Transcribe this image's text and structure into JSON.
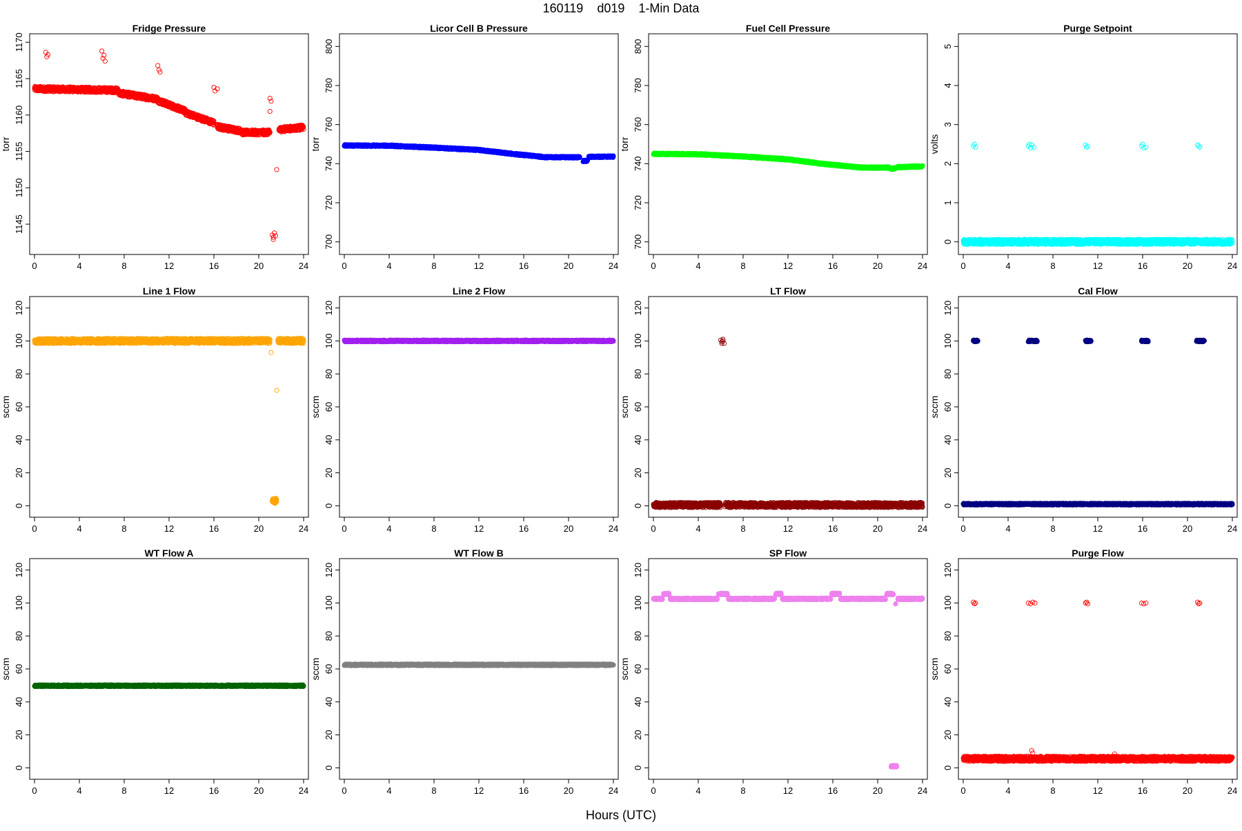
{
  "figure": {
    "title": "160119    d019    1-Min Data",
    "xlabel": "Hours (UTC)"
  },
  "chart_data": [
    {
      "type": "scatter",
      "title": "Fridge Pressure",
      "ylabel": "torr",
      "xlim": [
        0,
        24
      ],
      "ylim": [
        1141.5,
        1170.5
      ],
      "xticks": [
        0,
        4,
        8,
        12,
        16,
        20,
        24
      ],
      "yticks": [
        1145,
        1150,
        1155,
        1160,
        1165,
        1170
      ],
      "color": "#ff0000",
      "marker": "open-circle",
      "segments": [
        {
          "x": [
            0,
            7.5
          ],
          "y": [
            1163.6,
            1163.4
          ]
        },
        {
          "x": [
            7.5,
            11
          ],
          "y": [
            1163.0,
            1162.2
          ]
        },
        {
          "x": [
            11,
            13.5
          ],
          "y": [
            1162.0,
            1160.5
          ]
        },
        {
          "x": [
            13.5,
            16
          ],
          "y": [
            1160.3,
            1158.9
          ]
        },
        {
          "x": [
            16.3,
            18.5
          ],
          "y": [
            1158.4,
            1157.8
          ]
        },
        {
          "x": [
            18.5,
            21
          ],
          "y": [
            1157.6,
            1157.6
          ]
        },
        {
          "x": [
            21.8,
            24
          ],
          "y": [
            1158.0,
            1158.3
          ]
        }
      ],
      "points": [
        {
          "x": [
            1.0,
            1.1,
            1.2
          ],
          "y": [
            1168.6,
            1168.0,
            1168.3
          ]
        },
        {
          "x": [
            6.0,
            6.1,
            6.3,
            6.2
          ],
          "y": [
            1168.8,
            1167.8,
            1167.4,
            1168.2
          ]
        },
        {
          "x": [
            11.0,
            11.1,
            11.2
          ],
          "y": [
            1166.8,
            1166.2,
            1165.9
          ]
        },
        {
          "x": [
            16.0,
            16.1,
            16.3
          ],
          "y": [
            1163.8,
            1163.3,
            1163.6
          ]
        },
        {
          "x": [
            21.0,
            21.1,
            21.0,
            21.6
          ],
          "y": [
            1162.3,
            1161.9,
            1160.5,
            1152.5
          ]
        },
        {
          "x": [
            21.2,
            21.3,
            21.4,
            21.5,
            21.3
          ],
          "y": [
            1143.5,
            1143.2,
            1143.8,
            1143.4,
            1142.9
          ]
        }
      ]
    },
    {
      "type": "scatter",
      "title": "Licor Cell B Pressure",
      "ylabel": "torr",
      "xlim": [
        0,
        24
      ],
      "ylim": [
        696,
        804
      ],
      "xticks": [
        0,
        4,
        8,
        12,
        16,
        20,
        24
      ],
      "yticks": [
        700,
        720,
        740,
        760,
        780,
        800
      ],
      "color": "#0000ff",
      "marker": "filled-circle",
      "segments": [
        {
          "x": [
            0,
            4
          ],
          "y": [
            749.3,
            749.2
          ]
        },
        {
          "x": [
            4,
            8
          ],
          "y": [
            749.2,
            748.2
          ]
        },
        {
          "x": [
            8,
            12
          ],
          "y": [
            748.2,
            747.0
          ]
        },
        {
          "x": [
            12,
            15
          ],
          "y": [
            747.0,
            745.0
          ]
        },
        {
          "x": [
            15,
            18
          ],
          "y": [
            745.0,
            743.3
          ]
        },
        {
          "x": [
            18,
            21
          ],
          "y": [
            743.3,
            743.3
          ]
        },
        {
          "x": [
            21.3,
            21.7
          ],
          "y": [
            741.3,
            741.5
          ]
        },
        {
          "x": [
            21.8,
            24
          ],
          "y": [
            743.5,
            743.6
          ]
        }
      ],
      "points": []
    },
    {
      "type": "scatter",
      "title": "Fuel Cell Pressure",
      "ylabel": "torr",
      "xlim": [
        0,
        24
      ],
      "ylim": [
        696,
        804
      ],
      "xticks": [
        0,
        4,
        8,
        12,
        16,
        20,
        24
      ],
      "yticks": [
        700,
        720,
        740,
        760,
        780,
        800
      ],
      "color": "#00ff00",
      "marker": "filled-circle",
      "segments": [
        {
          "x": [
            0,
            4
          ],
          "y": [
            745.0,
            744.8
          ]
        },
        {
          "x": [
            4,
            8
          ],
          "y": [
            744.8,
            743.7
          ]
        },
        {
          "x": [
            8,
            12
          ],
          "y": [
            743.7,
            742.2
          ]
        },
        {
          "x": [
            12,
            15
          ],
          "y": [
            742.2,
            740.0
          ]
        },
        {
          "x": [
            15,
            18.5
          ],
          "y": [
            740.0,
            738.0
          ]
        },
        {
          "x": [
            18.5,
            21
          ],
          "y": [
            738.0,
            738.0
          ]
        },
        {
          "x": [
            21.2,
            21.6
          ],
          "y": [
            737.4,
            737.6
          ]
        },
        {
          "x": [
            21.8,
            24
          ],
          "y": [
            738.2,
            738.6
          ]
        }
      ],
      "points": []
    },
    {
      "type": "scatter",
      "title": "Purge Setpoint",
      "ylabel": "volts",
      "xlim": [
        0,
        24
      ],
      "ylim": [
        -0.2,
        5.2
      ],
      "xticks": [
        0,
        4,
        8,
        12,
        16,
        20,
        24
      ],
      "yticks": [
        0,
        1,
        2,
        3,
        4,
        5
      ],
      "color": "#00ffff",
      "marker": "open-circle",
      "segments": [
        {
          "x": [
            0,
            24
          ],
          "y": [
            0.0,
            0.0
          ]
        }
      ],
      "points": [
        {
          "x": [
            0.9,
            1.0,
            1.1
          ],
          "y": [
            2.45,
            2.5,
            2.42
          ]
        },
        {
          "x": [
            5.8,
            5.9,
            6.0,
            6.1,
            6.3
          ],
          "y": [
            2.45,
            2.5,
            2.4,
            2.48,
            2.42
          ]
        },
        {
          "x": [
            10.9,
            11.0,
            11.1
          ],
          "y": [
            2.48,
            2.42,
            2.45
          ]
        },
        {
          "x": [
            15.9,
            16.0,
            16.1,
            16.3
          ],
          "y": [
            2.45,
            2.5,
            2.4,
            2.42
          ]
        },
        {
          "x": [
            20.9,
            21.0,
            21.1
          ],
          "y": [
            2.48,
            2.45,
            2.42
          ]
        }
      ]
    },
    {
      "type": "scatter",
      "title": "Line 1 Flow",
      "ylabel": "sccm",
      "xlim": [
        0,
        24
      ],
      "ylim": [
        -4,
        124
      ],
      "xticks": [
        0,
        4,
        8,
        12,
        16,
        20,
        24
      ],
      "yticks": [
        0,
        20,
        40,
        60,
        80,
        100,
        120
      ],
      "color": "#ffa500",
      "marker": "open-circle",
      "segments": [
        {
          "x": [
            0,
            21
          ],
          "y": [
            100,
            100
          ]
        },
        {
          "x": [
            21.2,
            21.6
          ],
          "y": [
            3,
            3
          ]
        },
        {
          "x": [
            21.7,
            24
          ],
          "y": [
            100,
            100
          ]
        }
      ],
      "points": [
        {
          "x": [
            21.1,
            21.6
          ],
          "y": [
            93,
            70
          ]
        }
      ]
    },
    {
      "type": "scatter",
      "title": "Line 2 Flow",
      "ylabel": "sccm",
      "xlim": [
        0,
        24
      ],
      "ylim": [
        -4,
        124
      ],
      "xticks": [
        0,
        4,
        8,
        12,
        16,
        20,
        24
      ],
      "yticks": [
        0,
        20,
        40,
        60,
        80,
        100,
        120
      ],
      "color": "#a020f0",
      "marker": "filled-circle",
      "segments": [
        {
          "x": [
            0,
            24
          ],
          "y": [
            100,
            100
          ]
        }
      ],
      "points": []
    },
    {
      "type": "scatter",
      "title": "LT Flow",
      "ylabel": "sccm",
      "xlim": [
        0,
        24
      ],
      "ylim": [
        -4,
        124
      ],
      "xticks": [
        0,
        4,
        8,
        12,
        16,
        20,
        24
      ],
      "yticks": [
        0,
        20,
        40,
        60,
        80,
        100,
        120
      ],
      "color": "#8b0000",
      "marker": "open-circle",
      "segments": [
        {
          "x": [
            0,
            6
          ],
          "y": [
            0.5,
            0.5
          ]
        },
        {
          "x": [
            6.4,
            24
          ],
          "y": [
            0.5,
            0.5
          ]
        }
      ],
      "points": [
        {
          "x": [
            6.0,
            6.1,
            6.2,
            6.3,
            6.1,
            6.2
          ],
          "y": [
            100.5,
            99.5,
            100,
            98.5,
            98.5,
            101
          ]
        }
      ]
    },
    {
      "type": "scatter",
      "title": "Cal Flow",
      "ylabel": "sccm",
      "xlim": [
        0,
        24
      ],
      "ylim": [
        -4,
        124
      ],
      "xticks": [
        0,
        4,
        8,
        12,
        16,
        20,
        24
      ],
      "yticks": [
        0,
        20,
        40,
        60,
        80,
        100,
        120
      ],
      "color": "#000080",
      "marker": "filled-circle",
      "segments": [
        {
          "x": [
            0,
            24
          ],
          "y": [
            1,
            1
          ]
        },
        {
          "x": [
            0.9,
            1.3
          ],
          "y": [
            100,
            100
          ]
        },
        {
          "x": [
            5.8,
            6.6
          ],
          "y": [
            100,
            100
          ]
        },
        {
          "x": [
            10.9,
            11.4
          ],
          "y": [
            100,
            100
          ]
        },
        {
          "x": [
            15.9,
            16.5
          ],
          "y": [
            100,
            100
          ]
        },
        {
          "x": [
            20.8,
            21.5
          ],
          "y": [
            100,
            100
          ]
        }
      ],
      "points": []
    },
    {
      "type": "scatter",
      "title": "WT Flow A",
      "ylabel": "sccm",
      "xlim": [
        0,
        24
      ],
      "ylim": [
        -4,
        124
      ],
      "xticks": [
        0,
        4,
        8,
        12,
        16,
        20,
        24
      ],
      "yticks": [
        0,
        20,
        40,
        60,
        80,
        100,
        120
      ],
      "color": "#006400",
      "marker": "filled-circle",
      "segments": [
        {
          "x": [
            0,
            24
          ],
          "y": [
            49.8,
            49.8
          ]
        }
      ],
      "points": []
    },
    {
      "type": "scatter",
      "title": "WT Flow B",
      "ylabel": "sccm",
      "xlim": [
        0,
        24
      ],
      "ylim": [
        -4,
        124
      ],
      "xticks": [
        0,
        4,
        8,
        12,
        16,
        20,
        24
      ],
      "yticks": [
        0,
        20,
        40,
        60,
        80,
        100,
        120
      ],
      "color": "#808080",
      "marker": "filled-circle",
      "segments": [
        {
          "x": [
            0,
            24
          ],
          "y": [
            62.5,
            62.5
          ]
        }
      ],
      "points": []
    },
    {
      "type": "scatter",
      "title": "SP Flow",
      "ylabel": "sccm",
      "xlim": [
        0,
        24
      ],
      "ylim": [
        -4,
        124
      ],
      "xticks": [
        0,
        4,
        8,
        12,
        16,
        20,
        24
      ],
      "yticks": [
        0,
        20,
        40,
        60,
        80,
        100,
        120
      ],
      "color": "#ee82ee",
      "marker": "filled-circle",
      "segments": [
        {
          "x": [
            0,
            0.8
          ],
          "y": [
            102.5,
            102.5
          ]
        },
        {
          "x": [
            0.9,
            1.4
          ],
          "y": [
            105.5,
            105.5
          ]
        },
        {
          "x": [
            1.5,
            5.7
          ],
          "y": [
            102.5,
            102.5
          ]
        },
        {
          "x": [
            5.8,
            6.6
          ],
          "y": [
            105.5,
            105.5
          ]
        },
        {
          "x": [
            6.7,
            10.8
          ],
          "y": [
            102.5,
            102.5
          ]
        },
        {
          "x": [
            10.9,
            11.4
          ],
          "y": [
            105.5,
            105.5
          ]
        },
        {
          "x": [
            11.5,
            15.8
          ],
          "y": [
            102.5,
            102.5
          ]
        },
        {
          "x": [
            15.9,
            16.6
          ],
          "y": [
            105.5,
            105.5
          ]
        },
        {
          "x": [
            16.7,
            20.7
          ],
          "y": [
            102.5,
            102.5
          ]
        },
        {
          "x": [
            20.8,
            21.4
          ],
          "y": [
            105.5,
            105.5
          ]
        },
        {
          "x": [
            21.2,
            21.7
          ],
          "y": [
            1,
            1
          ]
        },
        {
          "x": [
            21.8,
            24
          ],
          "y": [
            102.5,
            102.5
          ]
        }
      ],
      "points": [
        {
          "x": [
            21.6
          ],
          "y": [
            99.5
          ]
        }
      ]
    },
    {
      "type": "scatter",
      "title": "Purge Flow",
      "ylabel": "sccm",
      "xlim": [
        0,
        24
      ],
      "ylim": [
        -4,
        124
      ],
      "xticks": [
        0,
        4,
        8,
        12,
        16,
        20,
        24
      ],
      "yticks": [
        0,
        20,
        40,
        60,
        80,
        100,
        120
      ],
      "color": "#ff0000",
      "marker": "open-circle",
      "segments": [
        {
          "x": [
            0,
            24
          ],
          "y": [
            5.5,
            5.5
          ]
        }
      ],
      "points": [
        {
          "x": [
            0.9,
            1.0,
            1.1
          ],
          "y": [
            100.5,
            99.5,
            100
          ]
        },
        {
          "x": [
            5.8,
            6.0,
            6.2,
            6.4
          ],
          "y": [
            100,
            99.5,
            100.5,
            100
          ]
        },
        {
          "x": [
            10.9,
            11.0,
            11.1
          ],
          "y": [
            100,
            100.5,
            99.5
          ]
        },
        {
          "x": [
            15.9,
            16.1,
            16.3
          ],
          "y": [
            100,
            99.5,
            100
          ]
        },
        {
          "x": [
            20.9,
            21.0,
            21.1
          ],
          "y": [
            100.5,
            99.5,
            100
          ]
        },
        {
          "x": [
            6.1,
            6.2,
            13.5
          ],
          "y": [
            10.5,
            9,
            8.5
          ]
        }
      ]
    }
  ]
}
